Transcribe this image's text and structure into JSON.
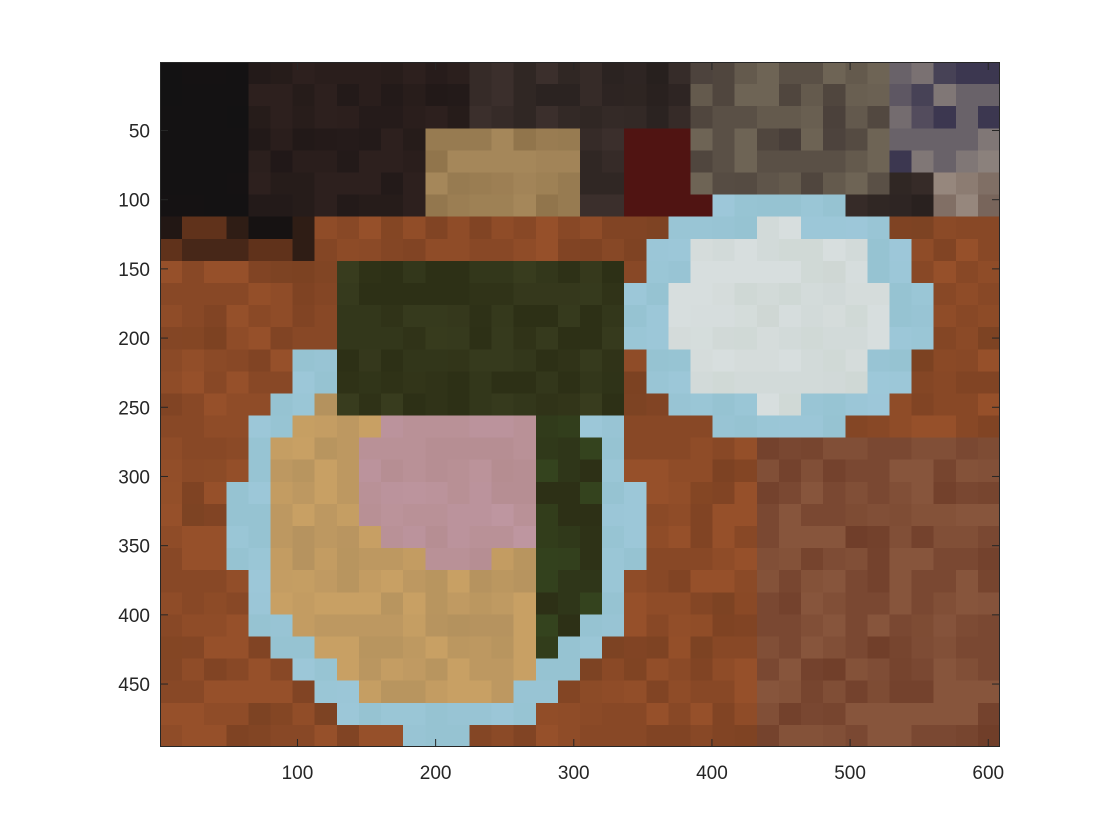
{
  "figure": {
    "type": "image",
    "xticks": [
      "100",
      "200",
      "300",
      "400",
      "500",
      "600"
    ],
    "yticks": [
      "50",
      "100",
      "150",
      "200",
      "250",
      "300",
      "350",
      "400",
      "450"
    ],
    "xlim": [
      0.5,
      608.5
    ],
    "ylim": [
      0.5,
      495.5
    ],
    "tick_values_x": [
      100,
      200,
      300,
      400,
      500,
      600
    ],
    "tick_values_y": [
      50,
      100,
      150,
      200,
      250,
      300,
      350,
      400,
      450
    ],
    "background_color": "#7a4226"
  },
  "icons": {
    "scene": "food-photo-pixelated"
  }
}
